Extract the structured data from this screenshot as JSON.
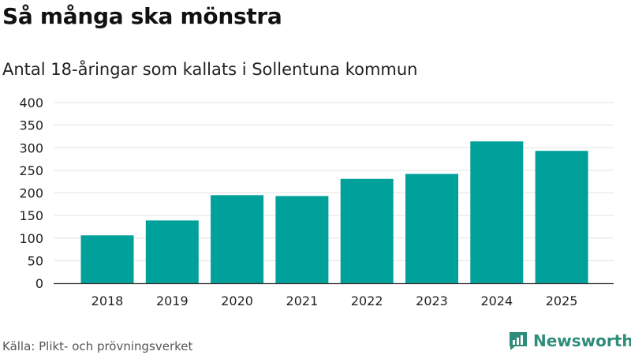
{
  "title": "Så många ska mönstra",
  "subtitle": "Antal 18-åringar som kallats i Sollentuna kommun",
  "source": "Källa: Plikt- och prövningsverket",
  "brand": {
    "name": "Newsworthy",
    "color": "#2d8c7a",
    "icon": "newsworthy-logo-icon"
  },
  "colors": {
    "bar": "#00a19a",
    "grid": "#e3e3e3",
    "axis": "#333333"
  },
  "chart_data": {
    "type": "bar",
    "title": "Så många ska mönstra",
    "subtitle": "Antal 18-åringar som kallats i Sollentuna kommun",
    "categories": [
      "2018",
      "2019",
      "2020",
      "2021",
      "2022",
      "2023",
      "2024",
      "2025"
    ],
    "values": [
      106,
      139,
      195,
      193,
      231,
      242,
      314,
      293
    ],
    "ylim": [
      0,
      400
    ],
    "yticks": [
      0,
      50,
      100,
      150,
      200,
      250,
      300,
      350,
      400
    ],
    "xlabel": "",
    "ylabel": "",
    "grid": true
  }
}
